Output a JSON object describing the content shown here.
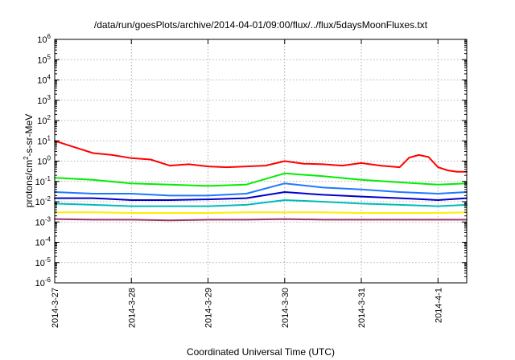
{
  "chart_data": {
    "type": "line",
    "title": "/data/run/goesPlots/archive/2014-04-01/09:00/flux/../flux/5daysMoonFluxes.txt",
    "xlabel": "Coordinated Universal Time (UTC)",
    "ylabel_parts": {
      "prefix": "protons/cm",
      "sup": "2",
      "suffix": "-s-sr-MeV"
    },
    "xscale": "time",
    "yscale": "log",
    "xlim": [
      "2014-03-27T00:00",
      "2014-04-01T09:00"
    ],
    "ylim": [
      1e-06,
      1000000.0
    ],
    "xticks": [
      {
        "value": "2014-03-27",
        "label": "2014-3-27"
      },
      {
        "value": "2014-03-28",
        "label": "2014-3-28"
      },
      {
        "value": "2014-03-29",
        "label": "2014-3-29"
      },
      {
        "value": "2014-03-30",
        "label": "2014-3-30"
      },
      {
        "value": "2014-03-31",
        "label": "2014-3-31"
      },
      {
        "value": "2014-04-01",
        "label": "2014-4-1"
      }
    ],
    "yticks": [
      {
        "value": 1e-06,
        "base": "10",
        "exp": "-6"
      },
      {
        "value": 1e-05,
        "base": "10",
        "exp": "-5"
      },
      {
        "value": 0.0001,
        "base": "10",
        "exp": "-4"
      },
      {
        "value": 0.001,
        "base": "10",
        "exp": "-3"
      },
      {
        "value": 0.01,
        "base": "10",
        "exp": "-2"
      },
      {
        "value": 0.1,
        "base": "10",
        "exp": "-1"
      },
      {
        "value": 1,
        "base": "10",
        "exp": "0"
      },
      {
        "value": 10,
        "base": "10",
        "exp": "1"
      },
      {
        "value": 100,
        "base": "10",
        "exp": "2"
      },
      {
        "value": 1000,
        "base": "10",
        "exp": "3"
      },
      {
        "value": 10000,
        "base": "10",
        "exp": "4"
      },
      {
        "value": 100000,
        "base": "10",
        "exp": "5"
      },
      {
        "value": 1000000,
        "base": "10",
        "exp": "6"
      }
    ],
    "grid": true,
    "legend": "none",
    "series": [
      {
        "color": "#ff0000",
        "x": [
          "2014-03-27T00:00",
          "2014-03-27T06:00",
          "2014-03-27T12:00",
          "2014-03-27T18:00",
          "2014-03-28T00:00",
          "2014-03-28T06:00",
          "2014-03-28T12:00",
          "2014-03-28T18:00",
          "2014-03-29T00:00",
          "2014-03-29T06:00",
          "2014-03-29T12:00",
          "2014-03-29T18:00",
          "2014-03-30T00:00",
          "2014-03-30T06:00",
          "2014-03-30T12:00",
          "2014-03-30T18:00",
          "2014-03-31T00:00",
          "2014-03-31T06:00",
          "2014-03-31T12:00",
          "2014-03-31T15:00",
          "2014-03-31T18:00",
          "2014-03-31T21:00",
          "2014-04-01T00:00",
          "2014-04-01T03:00",
          "2014-04-01T06:00",
          "2014-04-01T09:00"
        ],
        "y": [
          10,
          5,
          2.5,
          2,
          1.4,
          1.2,
          0.6,
          0.7,
          0.55,
          0.5,
          0.55,
          0.6,
          1.0,
          0.75,
          0.7,
          0.6,
          0.8,
          0.6,
          0.5,
          1.5,
          2.0,
          1.6,
          0.5,
          0.35,
          0.3,
          0.3
        ]
      },
      {
        "color": "#00ee00",
        "x": [
          "2014-03-27T00:00",
          "2014-03-27T12:00",
          "2014-03-28T00:00",
          "2014-03-28T12:00",
          "2014-03-29T00:00",
          "2014-03-29T12:00",
          "2014-03-30T00:00",
          "2014-03-30T12:00",
          "2014-03-31T00:00",
          "2014-03-31T12:00",
          "2014-04-01T00:00",
          "2014-04-01T09:00"
        ],
        "y": [
          0.15,
          0.12,
          0.08,
          0.07,
          0.06,
          0.07,
          0.25,
          0.18,
          0.12,
          0.09,
          0.07,
          0.08
        ]
      },
      {
        "color": "#1e78ff",
        "x": [
          "2014-03-27T00:00",
          "2014-03-27T12:00",
          "2014-03-28T00:00",
          "2014-03-28T12:00",
          "2014-03-29T00:00",
          "2014-03-29T12:00",
          "2014-03-30T00:00",
          "2014-03-30T12:00",
          "2014-03-31T00:00",
          "2014-03-31T12:00",
          "2014-04-01T00:00",
          "2014-04-01T09:00"
        ],
        "y": [
          0.03,
          0.025,
          0.025,
          0.02,
          0.02,
          0.025,
          0.08,
          0.05,
          0.04,
          0.03,
          0.025,
          0.03
        ]
      },
      {
        "color": "#0000cc",
        "x": [
          "2014-03-27T00:00",
          "2014-03-27T12:00",
          "2014-03-28T00:00",
          "2014-03-28T12:00",
          "2014-03-29T00:00",
          "2014-03-29T12:00",
          "2014-03-30T00:00",
          "2014-03-30T12:00",
          "2014-03-31T00:00",
          "2014-03-31T12:00",
          "2014-04-01T00:00",
          "2014-04-01T09:00"
        ],
        "y": [
          0.015,
          0.015,
          0.012,
          0.012,
          0.013,
          0.015,
          0.03,
          0.022,
          0.018,
          0.015,
          0.012,
          0.015
        ]
      },
      {
        "color": "#00bbbb",
        "x": [
          "2014-03-27T00:00",
          "2014-03-27T12:00",
          "2014-03-28T00:00",
          "2014-03-28T12:00",
          "2014-03-29T00:00",
          "2014-03-29T12:00",
          "2014-03-30T00:00",
          "2014-03-30T12:00",
          "2014-03-31T00:00",
          "2014-03-31T12:00",
          "2014-04-01T00:00",
          "2014-04-01T09:00"
        ],
        "y": [
          0.008,
          0.007,
          0.006,
          0.006,
          0.006,
          0.007,
          0.012,
          0.01,
          0.008,
          0.007,
          0.006,
          0.007
        ]
      },
      {
        "color": "#ffee00",
        "x": [
          "2014-03-27T00:00",
          "2014-03-27T12:00",
          "2014-03-28T00:00",
          "2014-03-28T12:00",
          "2014-03-29T00:00",
          "2014-03-29T12:00",
          "2014-03-30T00:00",
          "2014-03-30T12:00",
          "2014-03-31T00:00",
          "2014-03-31T12:00",
          "2014-04-01T00:00",
          "2014-04-01T09:00"
        ],
        "y": [
          0.003,
          0.003,
          0.0028,
          0.0028,
          0.0028,
          0.003,
          0.003,
          0.003,
          0.0028,
          0.0028,
          0.0028,
          0.003
        ]
      },
      {
        "color": "#993366",
        "x": [
          "2014-03-27T00:00",
          "2014-03-27T12:00",
          "2014-03-28T00:00",
          "2014-03-28T12:00",
          "2014-03-29T00:00",
          "2014-03-29T12:00",
          "2014-03-30T00:00",
          "2014-03-30T12:00",
          "2014-03-31T00:00",
          "2014-03-31T12:00",
          "2014-04-01T00:00",
          "2014-04-01T09:00"
        ],
        "y": [
          0.0014,
          0.0013,
          0.0013,
          0.0012,
          0.0013,
          0.0013,
          0.0014,
          0.0013,
          0.0013,
          0.0013,
          0.0013,
          0.0013
        ]
      }
    ]
  }
}
